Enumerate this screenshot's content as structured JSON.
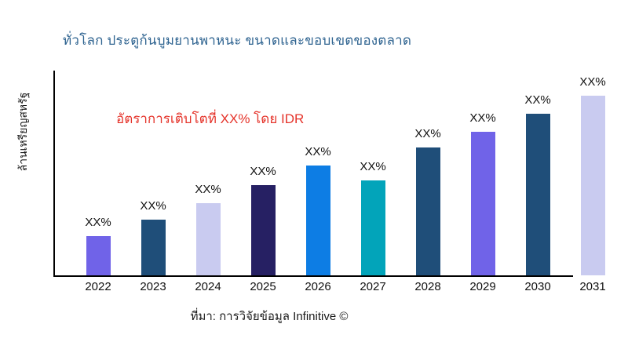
{
  "page": {
    "background": "#ffffff"
  },
  "header": {
    "title": "ทั่วโลก ประตูก้นบูมยานพาหนะ ขนาดและขอบเขตของตลาด",
    "title_color": "#2e6390"
  },
  "annotation": {
    "text": "อัตราการเติบโตที่ XX% โดย IDR",
    "color": "#e5342b"
  },
  "axes": {
    "y_label": "ล้านเหรียญสหรัฐ",
    "axis_color": "#000000"
  },
  "footer": {
    "source": "ที่มา: การวิจัยข้อมูล Infinitive ©"
  },
  "chart_data": {
    "type": "bar",
    "title": "ทั่วโลก ประตูก้นบูมยานพาหนะ ขนาดและขอบเขตของตลาด",
    "xlabel": "",
    "ylabel": "ล้านเหรียญสหรัฐ",
    "grid": false,
    "legend": false,
    "annotation": "อัตราการเติบโตที่ XX% โดย IDR",
    "source": "ที่มา: การวิจัยข้อมูล Infinitive ©",
    "categories": [
      "2022",
      "2023",
      "2024",
      "2025",
      "2026",
      "2027",
      "2028",
      "2029",
      "2030",
      "2031"
    ],
    "data_labels": [
      "XX%",
      "XX%",
      "XX%",
      "XX%",
      "XX%",
      "XX%",
      "XX%",
      "XX%",
      "XX%",
      "XX%"
    ],
    "values_relative_pct_of_max": [
      22,
      31,
      40,
      50,
      61,
      53,
      71,
      80,
      90,
      100
    ],
    "bar_colors": [
      "#7063e8",
      "#1f4e79",
      "#c9cbf0",
      "#262063",
      "#0d7de4",
      "#02a4ba",
      "#1f4e79",
      "#7063e8",
      "#1f4e79",
      "#c9cbf0"
    ]
  }
}
